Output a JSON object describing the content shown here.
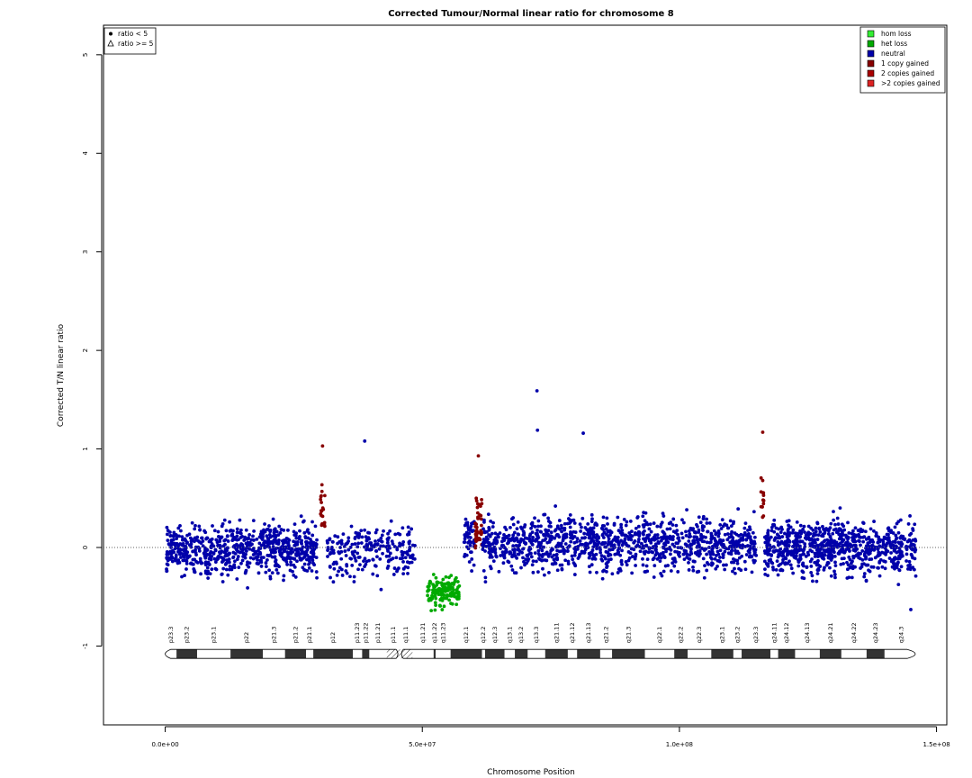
{
  "chart_data": {
    "type": "scatter",
    "title": "Corrected Tumour/Normal linear ratio for chromosome  8",
    "xlabel": "Chromosome Position",
    "ylabel": "Corrected T/N linear ratio",
    "xlim": [
      -12000000,
      152000000
    ],
    "ylim": [
      -1.8,
      5.3
    ],
    "x_ticks": [
      0,
      50000000,
      100000000,
      150000000
    ],
    "x_tick_labels": [
      "0.0e+00",
      "5.0e+07",
      "1.0e+08",
      "1.5e+08"
    ],
    "y_ticks": [
      -1,
      0,
      1,
      2,
      3,
      4,
      5
    ],
    "y_tick_labels": [
      "-1",
      "0",
      "1",
      "2",
      "3",
      "4",
      "5"
    ],
    "reference_line": 0,
    "shape_legend": {
      "position": "top-left",
      "items": [
        {
          "label": "ratio < 5",
          "shape": "circle"
        },
        {
          "label": "ratio >= 5",
          "shape": "triangle"
        }
      ]
    },
    "color_legend": {
      "position": "top-right",
      "items": [
        {
          "label": "hom loss",
          "color": "#33ee33"
        },
        {
          "label": "het loss",
          "color": "#00aa00"
        },
        {
          "label": "neutral",
          "color": "#0000aa"
        },
        {
          "label": "1 copy gained",
          "color": "#880000"
        },
        {
          "label": "2 copies gained",
          "color": "#aa0000"
        },
        {
          "label": ">2 copies gained",
          "color": "#dd2222"
        }
      ]
    },
    "segments": [
      {
        "state": "neutral",
        "color": "#0000aa",
        "x_start": 200000,
        "x_end": 29500000,
        "y_mean": -0.02,
        "y_sd": 0.2,
        "n": 720
      },
      {
        "state": "1 copy gained",
        "color": "#880000",
        "x_start": 30200000,
        "x_end": 31100000,
        "y_mean": 0.38,
        "y_sd": 0.22,
        "n": 20
      },
      {
        "state": "neutral",
        "color": "#0000aa",
        "x_start": 31500000,
        "x_end": 48600000,
        "y_mean": -0.02,
        "y_sd": 0.2,
        "n": 240
      },
      {
        "state": "het loss",
        "color": "#00aa00",
        "x_start": 51000000,
        "x_end": 57200000,
        "y_mean": -0.45,
        "y_sd": 0.11,
        "n": 150
      },
      {
        "state": "neutral",
        "color": "#0000aa",
        "x_start": 58000000,
        "x_end": 60100000,
        "y_mean": 0.08,
        "y_sd": 0.22,
        "n": 50
      },
      {
        "state": "1 copy gained",
        "color": "#880000",
        "x_start": 60300000,
        "x_end": 61600000,
        "y_mean": 0.25,
        "y_sd": 0.24,
        "n": 45
      },
      {
        "state": "neutral",
        "color": "#0000aa",
        "x_start": 61700000,
        "x_end": 115000000,
        "y_mean": 0.04,
        "y_sd": 0.21,
        "n": 1150
      },
      {
        "state": "1 copy gained",
        "color": "#880000",
        "x_start": 115800000,
        "x_end": 116400000,
        "y_mean": 0.5,
        "y_sd": 0.2,
        "n": 14
      },
      {
        "state": "neutral",
        "color": "#0000aa",
        "x_start": 116600000,
        "x_end": 146000000,
        "y_mean": 0.0,
        "y_sd": 0.2,
        "n": 820
      }
    ],
    "notable_points": [
      {
        "x": 72300000,
        "y": 1.59,
        "state": "neutral"
      },
      {
        "x": 72400000,
        "y": 1.19,
        "state": "neutral"
      },
      {
        "x": 38800000,
        "y": 1.08,
        "state": "neutral"
      },
      {
        "x": 81300000,
        "y": 1.16,
        "state": "neutral"
      },
      {
        "x": 30600000,
        "y": 1.03,
        "state": "1 copy gained"
      },
      {
        "x": 116200000,
        "y": 1.17,
        "state": "1 copy gained"
      },
      {
        "x": 60900000,
        "y": 0.93,
        "state": "1 copy gained"
      },
      {
        "x": 145000000,
        "y": -0.63,
        "state": "neutral"
      }
    ],
    "ideogram": {
      "y": -1.08,
      "bands": [
        {
          "name": "p23.3",
          "start": 0,
          "end": 2200000,
          "stain": "gneg"
        },
        {
          "name": "p23.2",
          "start": 2200000,
          "end": 6200000,
          "stain": "gpos"
        },
        {
          "name": "p23.1",
          "start": 6200000,
          "end": 12700000,
          "stain": "gneg"
        },
        {
          "name": "p22",
          "start": 12700000,
          "end": 19000000,
          "stain": "gpos"
        },
        {
          "name": "p21.3",
          "start": 19000000,
          "end": 23300000,
          "stain": "gneg"
        },
        {
          "name": "p21.2",
          "start": 23300000,
          "end": 27400000,
          "stain": "gpos"
        },
        {
          "name": "p21.1",
          "start": 27400000,
          "end": 28800000,
          "stain": "gneg"
        },
        {
          "name": "p12",
          "start": 28800000,
          "end": 36500000,
          "stain": "gpos"
        },
        {
          "name": "p11.23",
          "start": 36500000,
          "end": 38300000,
          "stain": "gneg"
        },
        {
          "name": "p11.22",
          "start": 38300000,
          "end": 39700000,
          "stain": "gpos"
        },
        {
          "name": "p11.21",
          "start": 39700000,
          "end": 43100000,
          "stain": "gneg"
        },
        {
          "name": "p11.1",
          "start": 43100000,
          "end": 45600000,
          "stain": "acen"
        },
        {
          "name": "q11.1",
          "start": 45600000,
          "end": 48100000,
          "stain": "acen"
        },
        {
          "name": "q11.21",
          "start": 48100000,
          "end": 52200000,
          "stain": "gneg"
        },
        {
          "name": "q11.22",
          "start": 52200000,
          "end": 52600000,
          "stain": "gpos"
        },
        {
          "name": "q11.23",
          "start": 52600000,
          "end": 55500000,
          "stain": "gneg"
        },
        {
          "name": "q12.1",
          "start": 55500000,
          "end": 61600000,
          "stain": "gpos"
        },
        {
          "name": "q12.2",
          "start": 61600000,
          "end": 62200000,
          "stain": "gneg"
        },
        {
          "name": "q12.3",
          "start": 62200000,
          "end": 66000000,
          "stain": "gpos"
        },
        {
          "name": "q13.1",
          "start": 66000000,
          "end": 68000000,
          "stain": "gneg"
        },
        {
          "name": "q13.2",
          "start": 68000000,
          "end": 70500000,
          "stain": "gpos"
        },
        {
          "name": "q13.3",
          "start": 70500000,
          "end": 73900000,
          "stain": "gneg"
        },
        {
          "name": "q21.11",
          "start": 73900000,
          "end": 78300000,
          "stain": "gpos"
        },
        {
          "name": "q21.12",
          "start": 78300000,
          "end": 80100000,
          "stain": "gneg"
        },
        {
          "name": "q21.13",
          "start": 80100000,
          "end": 84600000,
          "stain": "gpos"
        },
        {
          "name": "q21.2",
          "start": 84600000,
          "end": 86900000,
          "stain": "gneg"
        },
        {
          "name": "q21.3",
          "start": 86900000,
          "end": 93300000,
          "stain": "gpos"
        },
        {
          "name": "q22.1",
          "start": 93300000,
          "end": 99000000,
          "stain": "gneg"
        },
        {
          "name": "q22.2",
          "start": 99000000,
          "end": 101600000,
          "stain": "gpos"
        },
        {
          "name": "q22.3",
          "start": 101600000,
          "end": 106200000,
          "stain": "gneg"
        },
        {
          "name": "q23.1",
          "start": 106200000,
          "end": 110500000,
          "stain": "gpos"
        },
        {
          "name": "q23.2",
          "start": 110500000,
          "end": 112100000,
          "stain": "gneg"
        },
        {
          "name": "q23.3",
          "start": 112100000,
          "end": 117700000,
          "stain": "gpos"
        },
        {
          "name": "q24.11",
          "start": 117700000,
          "end": 119200000,
          "stain": "gneg"
        },
        {
          "name": "q24.12",
          "start": 119200000,
          "end": 122500000,
          "stain": "gpos"
        },
        {
          "name": "q24.13",
          "start": 122500000,
          "end": 127300000,
          "stain": "gneg"
        },
        {
          "name": "q24.21",
          "start": 127300000,
          "end": 131500000,
          "stain": "gpos"
        },
        {
          "name": "q24.22",
          "start": 131500000,
          "end": 136400000,
          "stain": "gneg"
        },
        {
          "name": "q24.23",
          "start": 136400000,
          "end": 139900000,
          "stain": "gpos"
        },
        {
          "name": "q24.3",
          "start": 139900000,
          "end": 146400000,
          "stain": "gneg"
        }
      ]
    }
  }
}
